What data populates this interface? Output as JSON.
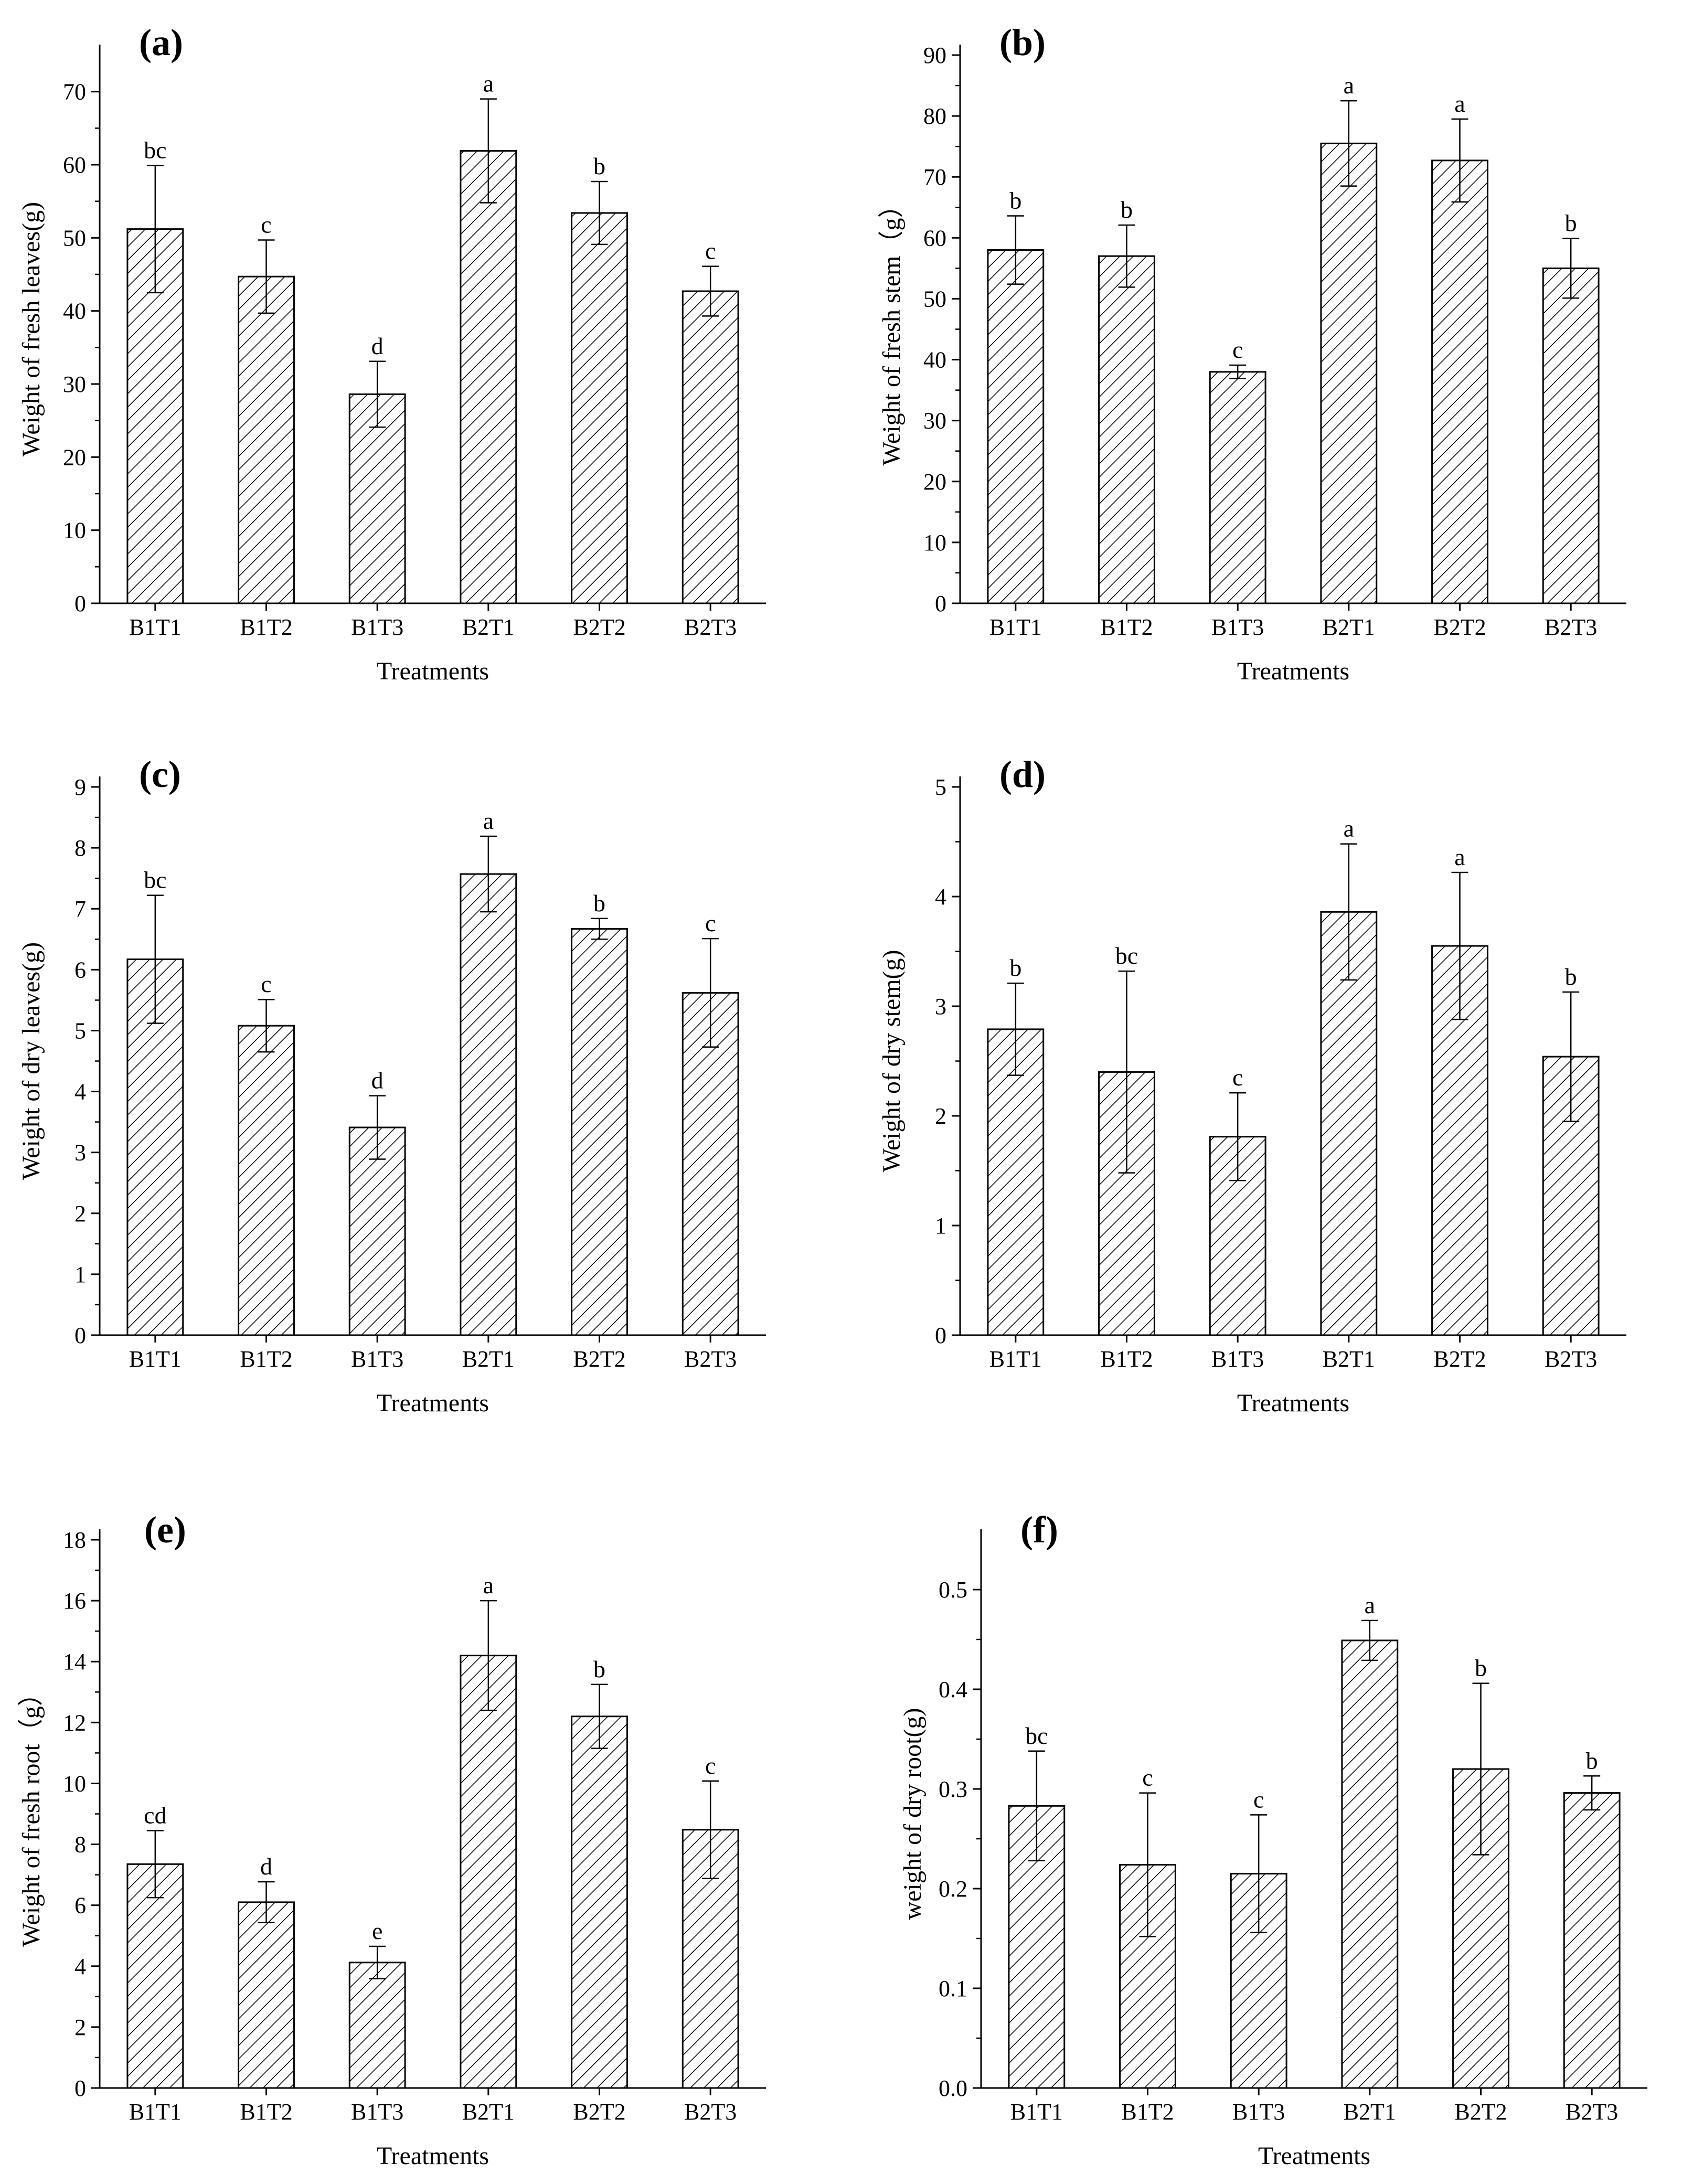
{
  "chart_data": [
    {
      "type": "bar",
      "panel": "(a)",
      "xlabel": "Treatments",
      "ylabel": "Weight of fresh leaves(g)",
      "categories": [
        "B1T1",
        "B1T2",
        "B1T3",
        "B2T1",
        "B2T2",
        "B2T3"
      ],
      "values": [
        51.2,
        44.7,
        28.6,
        61.9,
        53.4,
        42.7
      ],
      "errors": [
        8.7,
        5.0,
        4.5,
        7.1,
        4.3,
        3.4
      ],
      "letters": [
        "bc",
        "c",
        "d",
        "a",
        "b",
        "c"
      ],
      "ylim": [
        0,
        75
      ],
      "yticks": [
        "0",
        "10",
        "20",
        "30",
        "40",
        "50",
        "60",
        "70"
      ]
    },
    {
      "type": "bar",
      "panel": "(b)",
      "xlabel": "Treatments",
      "ylabel": "Weight of fresh stem（g）",
      "categories": [
        "B1T1",
        "B1T2",
        "B1T3",
        "B2T1",
        "B2T2",
        "B2T3"
      ],
      "values": [
        58.0,
        57.0,
        38.0,
        75.5,
        72.7,
        55.0
      ],
      "errors": [
        5.6,
        5.1,
        1.1,
        7.0,
        6.8,
        4.9
      ],
      "letters": [
        "b",
        "b",
        "c",
        "a",
        "a",
        "b"
      ],
      "ylim": [
        0,
        90
      ],
      "yticks": [
        "0",
        "10",
        "20",
        "30",
        "40",
        "50",
        "60",
        "70",
        "80",
        "90"
      ]
    },
    {
      "type": "bar",
      "panel": "(c)",
      "xlabel": "Treatments",
      "ylabel": "Weight of dry leaves(g)",
      "categories": [
        "B1T1",
        "B1T2",
        "B1T3",
        "B2T1",
        "B2T2",
        "B2T3"
      ],
      "values": [
        6.17,
        5.08,
        3.41,
        7.57,
        6.67,
        5.62
      ],
      "errors": [
        1.05,
        0.43,
        0.52,
        0.62,
        0.17,
        0.89
      ],
      "letters": [
        "bc",
        "c",
        "d",
        "a",
        "b",
        "c"
      ],
      "ylim": [
        0,
        9
      ],
      "yticks": [
        "0",
        "1",
        "2",
        "3",
        "4",
        "5",
        "6",
        "7",
        "8",
        "9"
      ]
    },
    {
      "type": "bar",
      "panel": "(d)",
      "xlabel": "Treatments",
      "ylabel": "Weight of dry stem(g)",
      "categories": [
        "B1T1",
        "B1T2",
        "B1T3",
        "B2T1",
        "B2T2",
        "B2T3"
      ],
      "values": [
        2.79,
        2.4,
        1.81,
        3.86,
        3.55,
        2.54
      ],
      "errors": [
        0.42,
        0.92,
        0.4,
        0.62,
        0.67,
        0.59
      ],
      "letters": [
        "b",
        "bc",
        "c",
        "a",
        "a",
        "b"
      ],
      "ylim": [
        0,
        5
      ],
      "yticks": [
        "0",
        "1",
        "2",
        "3",
        "4",
        "5"
      ]
    },
    {
      "type": "bar",
      "panel": "(e)",
      "xlabel": "Treatments",
      "ylabel": "Weight of fresh root（g）",
      "categories": [
        "B1T1",
        "B1T2",
        "B1T3",
        "B2T1",
        "B2T2",
        "B2T3"
      ],
      "values": [
        7.35,
        6.1,
        4.12,
        14.2,
        12.2,
        8.48
      ],
      "errors": [
        1.1,
        0.67,
        0.53,
        1.8,
        1.05,
        1.6
      ],
      "letters": [
        "cd",
        "d",
        "e",
        "a",
        "b",
        "c"
      ],
      "ylim": [
        0,
        18
      ],
      "yticks": [
        "0",
        "2",
        "4",
        "6",
        "8",
        "10",
        "12",
        "14",
        "16",
        "18"
      ]
    },
    {
      "type": "bar",
      "panel": "(f)",
      "xlabel": "Treatments",
      "ylabel": "weight of dry root(g)",
      "categories": [
        "B1T1",
        "B1T2",
        "B1T3",
        "B2T1",
        "B2T2",
        "B2T3"
      ],
      "values": [
        0.283,
        0.224,
        0.215,
        0.449,
        0.32,
        0.296
      ],
      "errors": [
        0.055,
        0.072,
        0.059,
        0.02,
        0.086,
        0.017
      ],
      "letters": [
        "bc",
        "c",
        "c",
        "a",
        "b",
        "b"
      ],
      "ylim": [
        0,
        0.55
      ],
      "yticks": [
        "0.0",
        "0.1",
        "0.2",
        "0.3",
        "0.4",
        "0.5"
      ]
    }
  ]
}
